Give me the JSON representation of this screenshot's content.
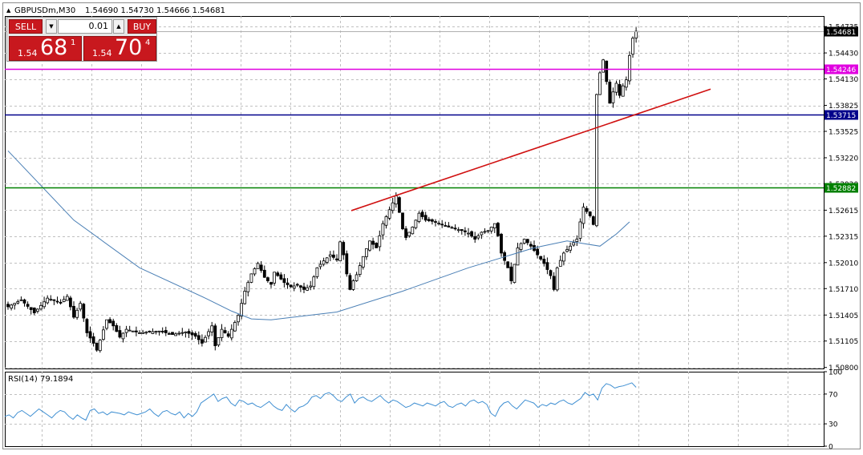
{
  "header": {
    "collapse_glyph": "▲",
    "symbol": "GBPUSDm,M30",
    "ohlc": "1.54690 1.54730 1.54666 1.54681"
  },
  "trade_panel": {
    "sell_label": "SELL",
    "buy_label": "BUY",
    "lot": "0.01",
    "down_glyph": "▼",
    "up_glyph": "▲",
    "bid_prefix": "1.54",
    "bid_big": "68",
    "bid_sup": "1",
    "ask_prefix": "1.54",
    "ask_big": "70",
    "ask_sup": "4",
    "colors": {
      "button": "#c8181e",
      "text": "#ffffff"
    }
  },
  "indicator": {
    "label": "RSI(14) 79.1894"
  },
  "chart_data": {
    "type": "candlestick",
    "symbol": "GBPUSDm",
    "timeframe": "M30",
    "ylim": [
      1.50788,
      1.54856
    ],
    "y_ticks": [
      "1.54735",
      "1.54430",
      "1.54130",
      "1.53825",
      "1.53525",
      "1.53220",
      "1.52920",
      "1.52615",
      "1.52315",
      "1.52010",
      "1.51710",
      "1.51405",
      "1.51105",
      "1.50800"
    ],
    "current_price": "1.54681",
    "close_path": [
      [
        0,
        1.515
      ],
      [
        4,
        1.5158
      ],
      [
        8,
        1.5143
      ],
      [
        12,
        1.516
      ],
      [
        16,
        1.5155
      ],
      [
        18,
        1.5162
      ],
      [
        20,
        1.5138
      ],
      [
        22,
        1.5154
      ],
      [
        24,
        1.512
      ],
      [
        26,
        1.5108
      ],
      [
        27,
        1.51
      ],
      [
        30,
        1.5135
      ],
      [
        32,
        1.5128
      ],
      [
        34,
        1.5115
      ],
      [
        36,
        1.5124
      ],
      [
        40,
        1.512
      ],
      [
        46,
        1.5122
      ],
      [
        50,
        1.5118
      ],
      [
        54,
        1.5121
      ],
      [
        57,
        1.5116
      ],
      [
        59,
        1.5108
      ],
      [
        62,
        1.5128
      ],
      [
        63,
        1.5105
      ],
      [
        65,
        1.5124
      ],
      [
        67,
        1.5116
      ],
      [
        70,
        1.514
      ],
      [
        72,
        1.5168
      ],
      [
        74,
        1.5188
      ],
      [
        76,
        1.52
      ],
      [
        78,
        1.5184
      ],
      [
        80,
        1.5176
      ],
      [
        81,
        1.519
      ],
      [
        84,
        1.5178
      ],
      [
        86,
        1.5173
      ],
      [
        88,
        1.5175
      ],
      [
        90,
        1.517
      ],
      [
        92,
        1.5174
      ],
      [
        94,
        1.5195
      ],
      [
        96,
        1.5203
      ],
      [
        98,
        1.521
      ],
      [
        100,
        1.5204
      ],
      [
        101,
        1.5225
      ],
      [
        102,
        1.521
      ],
      [
        103,
        1.5188
      ],
      [
        104,
        1.517
      ],
      [
        105,
        1.518
      ],
      [
        106,
        1.5187
      ],
      [
        108,
        1.5208
      ],
      [
        110,
        1.5226
      ],
      [
        112,
        1.5218
      ],
      [
        114,
        1.5246
      ],
      [
        116,
        1.5262
      ],
      [
        118,
        1.5278
      ],
      [
        120,
        1.524
      ],
      [
        121,
        1.523
      ],
      [
        123,
        1.5242
      ],
      [
        125,
        1.5258
      ],
      [
        127,
        1.525
      ],
      [
        130,
        1.5248
      ],
      [
        134,
        1.5242
      ],
      [
        138,
        1.5238
      ],
      [
        140,
        1.5235
      ],
      [
        142,
        1.5228
      ],
      [
        144,
        1.5236
      ],
      [
        146,
        1.5238
      ],
      [
        148,
        1.5246
      ],
      [
        149,
        1.5232
      ],
      [
        150,
        1.5212
      ],
      [
        152,
        1.5195
      ],
      [
        153,
        1.518
      ],
      [
        155,
        1.5218
      ],
      [
        157,
        1.5228
      ],
      [
        159,
        1.522
      ],
      [
        161,
        1.521
      ],
      [
        163,
        1.52
      ],
      [
        165,
        1.5186
      ],
      [
        166,
        1.517
      ],
      [
        167,
        1.5195
      ],
      [
        169,
        1.5212
      ],
      [
        171,
        1.522
      ],
      [
        173,
        1.5228
      ],
      [
        174,
        1.5248
      ],
      [
        175,
        1.5265
      ],
      [
        176,
        1.526
      ],
      [
        177,
        1.5255
      ],
      [
        178,
        1.5245
      ],
      [
        179,
        1.5395
      ],
      [
        180,
        1.542
      ],
      [
        181,
        1.5435
      ],
      [
        182,
        1.541
      ],
      [
        183,
        1.5385
      ],
      [
        184,
        1.5398
      ],
      [
        185,
        1.5408
      ],
      [
        186,
        1.5394
      ],
      [
        187,
        1.5405
      ],
      [
        188,
        1.5412
      ],
      [
        189,
        1.544
      ],
      [
        190,
        1.546
      ],
      [
        191,
        1.5468
      ]
    ],
    "moving_average": [
      [
        0,
        1.533
      ],
      [
        20,
        1.525
      ],
      [
        40,
        1.5195
      ],
      [
        60,
        1.516
      ],
      [
        68,
        1.5145
      ],
      [
        74,
        1.5136
      ],
      [
        80,
        1.5135
      ],
      [
        100,
        1.5144
      ],
      [
        120,
        1.5168
      ],
      [
        140,
        1.5195
      ],
      [
        160,
        1.5218
      ],
      [
        170,
        1.5226
      ],
      [
        180,
        1.522
      ],
      [
        185,
        1.5234
      ],
      [
        189,
        1.5248
      ]
    ],
    "horizontal_lines": [
      {
        "price": 1.54246,
        "label": "1.54246",
        "color": "#e000e0"
      },
      {
        "price": 1.53715,
        "label": "1.53715",
        "color": "#00008b"
      },
      {
        "price": 1.52882,
        "label": "1.52882",
        "color": "#008000"
      }
    ],
    "trendline": {
      "from": [
        1.5261
      ],
      "to": [
        1.54012
      ],
      "color": "#d01010"
    },
    "rsi": {
      "ylim": [
        0,
        100
      ],
      "ticks": [
        "100",
        "70",
        "30",
        "0"
      ],
      "levels": [
        70,
        30
      ],
      "values": [
        40,
        42,
        38,
        45,
        48,
        44,
        40,
        45,
        50,
        46,
        42,
        38,
        44,
        48,
        46,
        40,
        36,
        42,
        38,
        35,
        48,
        50,
        44,
        46,
        42,
        46,
        45,
        44,
        42,
        46,
        44,
        42,
        44,
        46,
        50,
        44,
        40,
        46,
        48,
        44,
        42,
        46,
        38,
        44,
        40,
        46,
        58,
        62,
        66,
        70,
        60,
        64,
        66,
        58,
        54,
        62,
        60,
        56,
        58,
        54,
        52,
        56,
        60,
        54,
        50,
        48,
        56,
        50,
        46,
        52,
        54,
        58,
        66,
        68,
        64,
        70,
        72,
        68,
        62,
        60,
        66,
        70,
        58,
        64,
        66,
        62,
        60,
        64,
        68,
        62,
        58,
        62,
        60,
        56,
        52,
        54,
        58,
        56,
        54,
        58,
        56,
        54,
        58,
        60,
        54,
        52,
        56,
        58,
        54,
        60,
        62,
        58,
        60,
        56,
        44,
        40,
        52,
        58,
        60,
        54,
        50,
        56,
        62,
        60,
        58,
        52,
        56,
        54,
        58,
        56,
        60,
        62,
        58,
        56,
        60,
        64,
        72,
        68,
        70,
        62,
        78,
        84,
        82,
        78,
        80,
        81,
        83,
        85,
        79
      ]
    }
  }
}
